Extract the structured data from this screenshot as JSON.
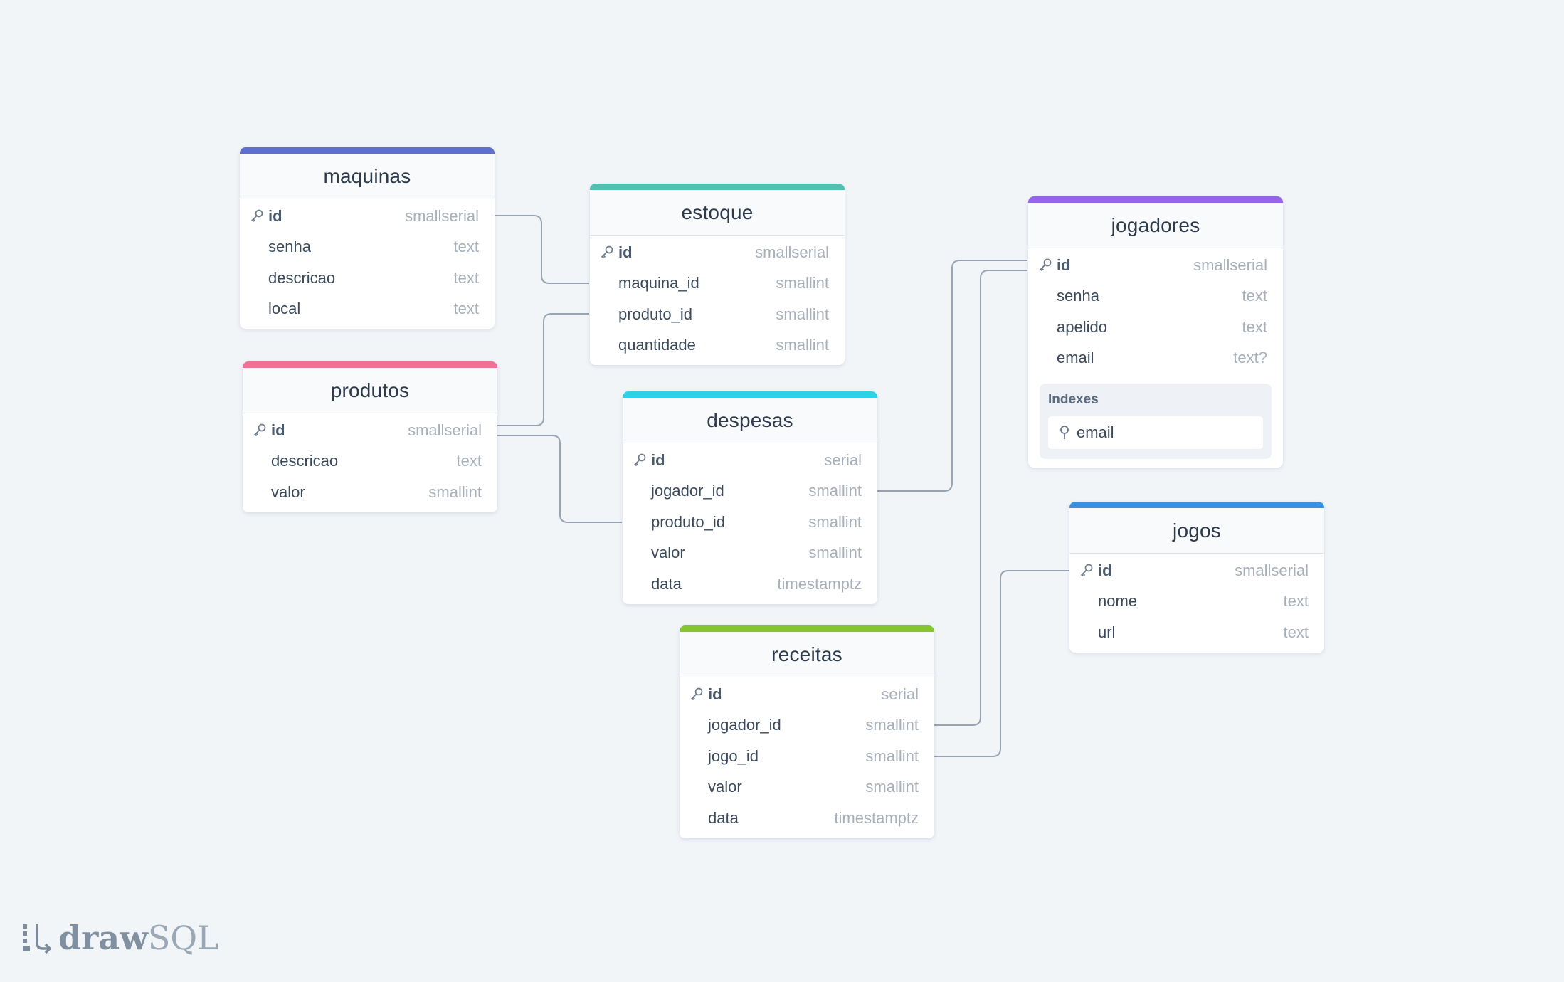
{
  "colors": {
    "maquinas": "#5f6fcf",
    "produtos": "#f07194",
    "estoque": "#52bfb0",
    "despesas": "#2ed0ea",
    "receitas": "#84c62b",
    "jogadores": "#9564e8",
    "jogos": "#3b8fe0",
    "connector": "#98a3b3"
  },
  "tables": {
    "maquinas": {
      "title": "maquinas",
      "columns": [
        {
          "name": "id",
          "type": "smallserial"
        },
        {
          "name": "senha",
          "type": "text"
        },
        {
          "name": "descricao",
          "type": "text"
        },
        {
          "name": "local",
          "type": "text"
        }
      ]
    },
    "produtos": {
      "title": "produtos",
      "columns": [
        {
          "name": "id",
          "type": "smallserial"
        },
        {
          "name": "descricao",
          "type": "text"
        },
        {
          "name": "valor",
          "type": "smallint"
        }
      ]
    },
    "estoque": {
      "title": "estoque",
      "columns": [
        {
          "name": "id",
          "type": "smallserial"
        },
        {
          "name": "maquina_id",
          "type": "smallint"
        },
        {
          "name": "produto_id",
          "type": "smallint"
        },
        {
          "name": "quantidade",
          "type": "smallint"
        }
      ]
    },
    "despesas": {
      "title": "despesas",
      "columns": [
        {
          "name": "id",
          "type": "serial"
        },
        {
          "name": "jogador_id",
          "type": "smallint"
        },
        {
          "name": "produto_id",
          "type": "smallint"
        },
        {
          "name": "valor",
          "type": "smallint"
        },
        {
          "name": "data",
          "type": "timestamptz"
        }
      ]
    },
    "receitas": {
      "title": "receitas",
      "columns": [
        {
          "name": "id",
          "type": "serial"
        },
        {
          "name": "jogador_id",
          "type": "smallint"
        },
        {
          "name": "jogo_id",
          "type": "smallint"
        },
        {
          "name": "valor",
          "type": "smallint"
        },
        {
          "name": "data",
          "type": "timestamptz"
        }
      ]
    },
    "jogadores": {
      "title": "jogadores",
      "columns": [
        {
          "name": "id",
          "type": "smallserial"
        },
        {
          "name": "senha",
          "type": "text"
        },
        {
          "name": "apelido",
          "type": "text"
        },
        {
          "name": "email",
          "type": "text?"
        }
      ],
      "indexes_title": "Indexes",
      "indexes": [
        "email"
      ]
    },
    "jogos": {
      "title": "jogos",
      "columns": [
        {
          "name": "id",
          "type": "smallserial"
        },
        {
          "name": "nome",
          "type": "text"
        },
        {
          "name": "url",
          "type": "text"
        }
      ]
    }
  },
  "logo": {
    "word1": "draw",
    "word2": "SQL"
  }
}
